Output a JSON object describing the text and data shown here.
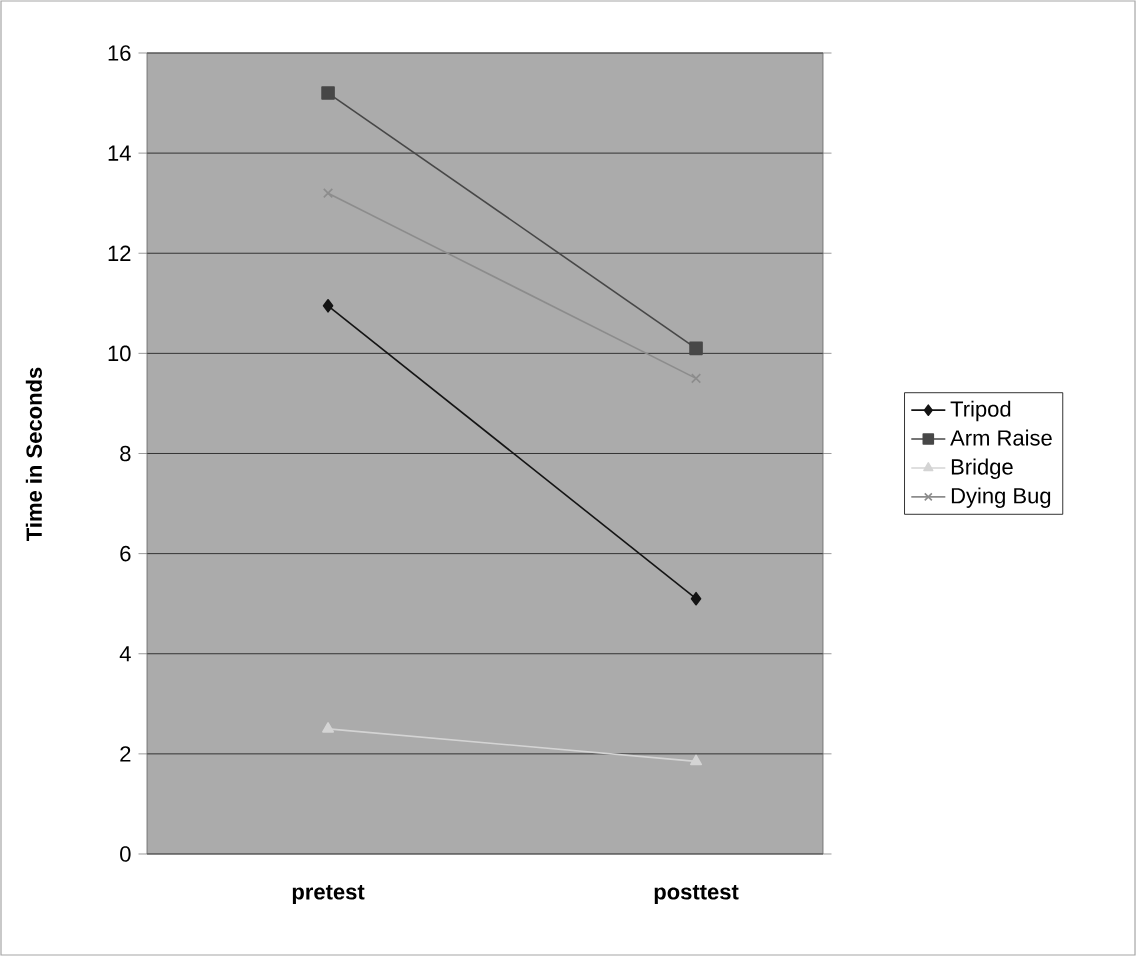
{
  "chart_data": {
    "type": "line",
    "ylabel": "Time in Seconds",
    "categories": [
      "pretest",
      "posttest"
    ],
    "series": [
      {
        "name": "Tripod",
        "color": "#141414",
        "marker": "diamond",
        "values": [
          10.95,
          5.1
        ]
      },
      {
        "name": "Arm Raise",
        "color": "#474747",
        "marker": "square",
        "values": [
          15.2,
          10.1
        ]
      },
      {
        "name": "Bridge",
        "color": "#d4d4d4",
        "marker": "triangle",
        "values": [
          2.5,
          1.85
        ]
      },
      {
        "name": "Dying Bug",
        "color": "#8c8c8c",
        "marker": "cross",
        "values": [
          13.2,
          9.5
        ]
      }
    ],
    "ylim": [
      0,
      16
    ],
    "yticks": [
      0,
      2,
      4,
      6,
      8,
      10,
      12,
      14,
      16
    ],
    "grid": "y",
    "legend": "right"
  }
}
